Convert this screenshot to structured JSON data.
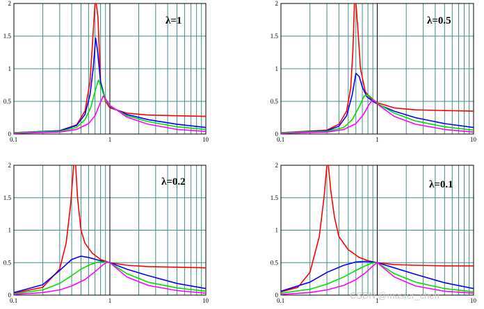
{
  "chart_data": [
    {
      "type": "line",
      "lambda_label": "λ=1",
      "x_scale": "log",
      "xlim": [
        0.1,
        10
      ],
      "ylim": [
        0,
        2
      ],
      "x_tick_labels": [
        "0.1",
        "1",
        "10"
      ],
      "y_tick_labels": [
        "0",
        "0.5",
        "1",
        "1.5",
        "2"
      ],
      "grid": true,
      "series": [
        {
          "color": "#ff0000",
          "x": [
            0.1,
            0.3,
            0.45,
            0.55,
            0.62,
            0.66,
            0.7,
            0.72,
            0.75,
            0.8,
            0.9,
            1.0,
            1.5,
            2.5,
            5.0,
            10.0
          ],
          "y": [
            0.02,
            0.05,
            0.14,
            0.35,
            0.8,
            1.4,
            2.0,
            2.0,
            1.8,
            0.8,
            0.5,
            0.4,
            0.32,
            0.29,
            0.28,
            0.27
          ]
        },
        {
          "color": "#0000ff",
          "x": [
            0.1,
            0.3,
            0.45,
            0.55,
            0.62,
            0.67,
            0.71,
            0.74,
            0.8,
            0.9,
            1.0,
            1.5,
            2.5,
            5.0,
            10.0
          ],
          "y": [
            0.02,
            0.05,
            0.13,
            0.3,
            0.6,
            1.0,
            1.47,
            1.3,
            0.8,
            0.52,
            0.42,
            0.3,
            0.22,
            0.15,
            0.1
          ]
        },
        {
          "color": "#00e000",
          "x": [
            0.1,
            0.3,
            0.45,
            0.55,
            0.63,
            0.7,
            0.76,
            0.82,
            0.9,
            1.0,
            1.5,
            2.5,
            5.0,
            10.0
          ],
          "y": [
            0.02,
            0.04,
            0.1,
            0.22,
            0.4,
            0.65,
            0.83,
            0.7,
            0.52,
            0.43,
            0.28,
            0.19,
            0.11,
            0.07
          ]
        },
        {
          "color": "#ff00ff",
          "x": [
            0.1,
            0.3,
            0.45,
            0.6,
            0.7,
            0.78,
            0.85,
            0.9,
            1.0,
            1.5,
            2.5,
            5.0,
            10.0
          ],
          "y": [
            0.01,
            0.03,
            0.07,
            0.16,
            0.28,
            0.45,
            0.58,
            0.54,
            0.44,
            0.26,
            0.15,
            0.07,
            0.04
          ]
        }
      ]
    },
    {
      "type": "line",
      "lambda_label": "λ=0.5",
      "x_scale": "log",
      "xlim": [
        0.1,
        10
      ],
      "ylim": [
        0,
        2
      ],
      "x_tick_labels": [
        "0.1",
        "1",
        "10"
      ],
      "y_tick_labels": [
        "0",
        "0.5",
        "1",
        "1.5",
        "2"
      ],
      "grid": true,
      "series": [
        {
          "color": "#ff0000",
          "x": [
            0.1,
            0.3,
            0.4,
            0.48,
            0.53,
            0.56,
            0.58,
            0.6,
            0.63,
            0.67,
            0.75,
            0.85,
            1.0,
            1.5,
            2.5,
            5.0,
            10.0
          ],
          "y": [
            0.02,
            0.06,
            0.15,
            0.35,
            0.7,
            1.3,
            2.0,
            2.0,
            1.6,
            1.0,
            0.65,
            0.55,
            0.48,
            0.4,
            0.37,
            0.36,
            0.35
          ]
        },
        {
          "color": "#0000ff",
          "x": [
            0.1,
            0.3,
            0.4,
            0.48,
            0.55,
            0.6,
            0.65,
            0.7,
            0.78,
            0.9,
            1.0,
            1.5,
            2.5,
            5.0,
            10.0
          ],
          "y": [
            0.02,
            0.05,
            0.12,
            0.28,
            0.6,
            0.93,
            0.88,
            0.72,
            0.57,
            0.5,
            0.46,
            0.35,
            0.25,
            0.16,
            0.1
          ]
        },
        {
          "color": "#00e000",
          "x": [
            0.1,
            0.3,
            0.45,
            0.55,
            0.65,
            0.73,
            0.8,
            0.88,
            1.0,
            1.5,
            2.5,
            5.0,
            10.0
          ],
          "y": [
            0.02,
            0.04,
            0.1,
            0.22,
            0.42,
            0.58,
            0.6,
            0.55,
            0.47,
            0.32,
            0.2,
            0.11,
            0.06
          ]
        },
        {
          "color": "#ff00ff",
          "x": [
            0.1,
            0.3,
            0.45,
            0.6,
            0.72,
            0.82,
            0.9,
            0.95,
            1.0,
            1.5,
            2.5,
            5.0,
            10.0
          ],
          "y": [
            0.01,
            0.03,
            0.07,
            0.16,
            0.3,
            0.45,
            0.53,
            0.5,
            0.46,
            0.27,
            0.15,
            0.07,
            0.03
          ]
        }
      ]
    },
    {
      "type": "line",
      "lambda_label": "λ=0.2",
      "x_scale": "log",
      "xlim": [
        0.1,
        10
      ],
      "ylim": [
        0,
        2
      ],
      "x_tick_labels": [
        "0.1",
        "1",
        "10"
      ],
      "y_tick_labels": [
        "0",
        "0.5",
        "1",
        "1.5",
        "2"
      ],
      "grid": true,
      "series": [
        {
          "color": "#ff0000",
          "x": [
            0.1,
            0.2,
            0.3,
            0.35,
            0.39,
            0.42,
            0.44,
            0.46,
            0.5,
            0.55,
            0.65,
            0.8,
            1.0,
            1.5,
            2.5,
            5.0,
            10.0
          ],
          "y": [
            0.03,
            0.12,
            0.4,
            0.8,
            1.4,
            2.0,
            2.0,
            1.5,
            1.0,
            0.8,
            0.65,
            0.55,
            0.5,
            0.46,
            0.44,
            0.43,
            0.42
          ]
        },
        {
          "color": "#0000ff",
          "x": [
            0.1,
            0.2,
            0.3,
            0.4,
            0.5,
            0.6,
            0.75,
            0.9,
            1.0,
            1.5,
            2.5,
            5.0,
            10.0
          ],
          "y": [
            0.04,
            0.16,
            0.38,
            0.55,
            0.6,
            0.58,
            0.54,
            0.51,
            0.5,
            0.4,
            0.3,
            0.18,
            0.1
          ]
        },
        {
          "color": "#00e000",
          "x": [
            0.1,
            0.2,
            0.3,
            0.4,
            0.5,
            0.62,
            0.75,
            0.9,
            1.0,
            1.5,
            2.5,
            5.0,
            10.0
          ],
          "y": [
            0.02,
            0.08,
            0.18,
            0.3,
            0.4,
            0.47,
            0.51,
            0.51,
            0.5,
            0.33,
            0.2,
            0.11,
            0.06
          ]
        },
        {
          "color": "#ff00ff",
          "x": [
            0.1,
            0.2,
            0.3,
            0.4,
            0.55,
            0.7,
            0.85,
            0.95,
            1.0,
            1.5,
            2.5,
            5.0,
            10.0
          ],
          "y": [
            0.01,
            0.04,
            0.08,
            0.14,
            0.24,
            0.36,
            0.47,
            0.51,
            0.5,
            0.28,
            0.15,
            0.07,
            0.03
          ]
        }
      ]
    },
    {
      "type": "line",
      "lambda_label": "λ=0.1",
      "x_scale": "log",
      "xlim": [
        0.1,
        10
      ],
      "ylim": [
        0,
        2
      ],
      "x_tick_labels": [
        "0.1",
        "1",
        "10"
      ],
      "y_tick_labels": [
        "0",
        "0.5",
        "1",
        "1.5",
        "2"
      ],
      "grid": true,
      "series": [
        {
          "color": "#ff0000",
          "x": [
            0.1,
            0.15,
            0.2,
            0.25,
            0.28,
            0.3,
            0.31,
            0.33,
            0.36,
            0.4,
            0.5,
            0.65,
            0.8,
            1.0,
            1.5,
            2.5,
            5.0,
            10.0
          ],
          "y": [
            0.05,
            0.12,
            0.35,
            0.9,
            1.5,
            2.0,
            2.0,
            1.6,
            1.2,
            0.9,
            0.7,
            0.58,
            0.53,
            0.5,
            0.47,
            0.46,
            0.45,
            0.45
          ]
        },
        {
          "color": "#0000ff",
          "x": [
            0.1,
            0.2,
            0.3,
            0.45,
            0.6,
            0.75,
            0.9,
            1.0,
            1.5,
            2.5,
            5.0,
            10.0
          ],
          "y": [
            0.06,
            0.2,
            0.35,
            0.46,
            0.51,
            0.52,
            0.51,
            0.5,
            0.42,
            0.32,
            0.19,
            0.1
          ]
        },
        {
          "color": "#00e000",
          "x": [
            0.1,
            0.2,
            0.3,
            0.45,
            0.6,
            0.75,
            0.9,
            1.0,
            1.5,
            2.5,
            5.0,
            10.0
          ],
          "y": [
            0.03,
            0.09,
            0.17,
            0.28,
            0.38,
            0.45,
            0.5,
            0.5,
            0.33,
            0.2,
            0.1,
            0.05
          ]
        },
        {
          "color": "#ff00ff",
          "x": [
            0.1,
            0.2,
            0.3,
            0.45,
            0.6,
            0.75,
            0.9,
            1.0,
            1.5,
            2.5,
            5.0,
            10.0
          ],
          "y": [
            0.01,
            0.04,
            0.08,
            0.15,
            0.24,
            0.34,
            0.45,
            0.5,
            0.28,
            0.14,
            0.06,
            0.03
          ]
        }
      ]
    }
  ],
  "watermark": "CSDN @master_chen"
}
